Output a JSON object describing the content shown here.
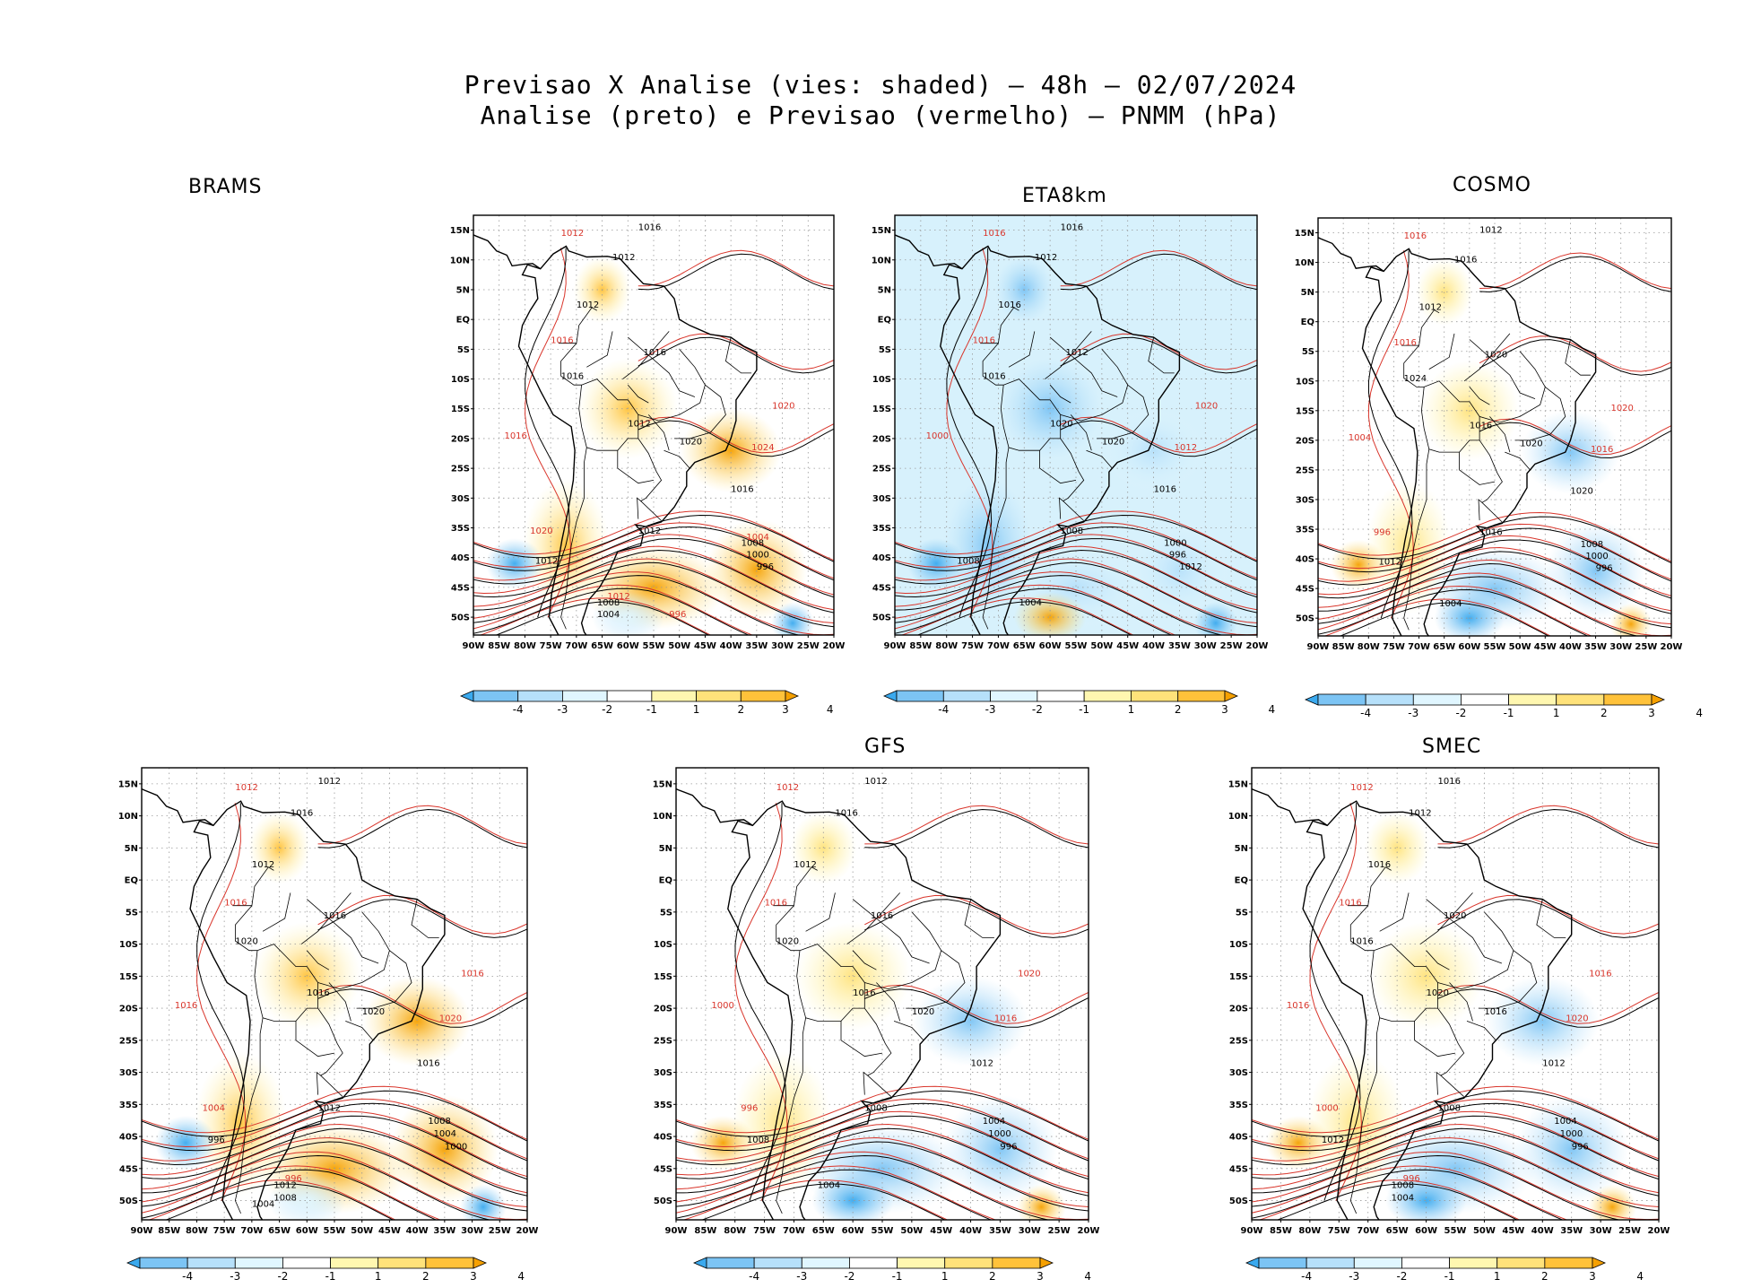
{
  "header": {
    "title_line1": "Previsao X Analise (vies: shaded) — 48h — 02/07/2024",
    "title_line2": "Analise (preto) e Previsao (vermelho) — PNMM (hPa)"
  },
  "axes": {
    "lon_labels": [
      "90W",
      "85W",
      "80W",
      "75W",
      "70W",
      "65W",
      "60W",
      "55W",
      "50W",
      "45W",
      "40W",
      "35W",
      "30W",
      "25W",
      "20W"
    ],
    "lat_labels": [
      "15N",
      "10N",
      "5N",
      "EQ",
      "5S",
      "10S",
      "15S",
      "20S",
      "25S",
      "30S",
      "35S",
      "40S",
      "45S",
      "50S"
    ]
  },
  "colorbar": {
    "labels": [
      "-4",
      "-3",
      "-2",
      "-1",
      "1",
      "2",
      "3",
      "4"
    ],
    "colors": [
      "#3aa9ee",
      "#7cc4f4",
      "#b6e0fa",
      "#e0f6ff",
      "#ffffff",
      "#fff7b0",
      "#ffe27a",
      "#ffc23a",
      "#f5a000"
    ]
  },
  "colors": {
    "analysis_contour": "#000000",
    "forecast_contour": "#d9352b",
    "grid": "#999999"
  },
  "panels": [
    {
      "id": "brams",
      "name": "BRAMS",
      "bias_tone": "warm",
      "isobar_labels_black": [
        "1016",
        "1012",
        "1012",
        "1016",
        "1016",
        "1012",
        "1020",
        "1016",
        "1012",
        "1008",
        "1000",
        "996",
        "1012",
        "1008",
        "1004"
      ],
      "isobar_labels_red": [
        "1012",
        "1016",
        "1020",
        "1024",
        "1016",
        "1020",
        "1012",
        "1004",
        "996"
      ]
    },
    {
      "id": "eta8km",
      "name": "ETA8km",
      "bias_tone": "cool",
      "isobar_labels_black": [
        "1016",
        "1012",
        "1016",
        "1012",
        "1016",
        "1020",
        "1020",
        "1016",
        "1008",
        "1000",
        "996",
        "1012",
        "1008",
        "1004"
      ],
      "isobar_labels_red": [
        "1016",
        "1016",
        "1020",
        "1012",
        "1000"
      ]
    },
    {
      "id": "cosmo",
      "name": "COSMO",
      "bias_tone": "mixed",
      "isobar_labels_black": [
        "1012",
        "1016",
        "1012",
        "1020",
        "1024",
        "1016",
        "1020",
        "1020",
        "1016",
        "1008",
        "1000",
        "996",
        "1012",
        "1004"
      ],
      "isobar_labels_red": [
        "1016",
        "1016",
        "1020",
        "1016",
        "1004",
        "996"
      ]
    },
    {
      "id": "brams2",
      "name": "",
      "bias_tone": "warm",
      "isobar_labels_black": [
        "1012",
        "1016",
        "1012",
        "1016",
        "1020",
        "1016",
        "1020",
        "1016",
        "1012",
        "1008",
        "1004",
        "1000",
        "996",
        "1012",
        "1008",
        "1004"
      ],
      "isobar_labels_red": [
        "1012",
        "1016",
        "1016",
        "1020",
        "1016",
        "1004",
        "996"
      ]
    },
    {
      "id": "gfs",
      "name": "GFS",
      "bias_tone": "mixed",
      "isobar_labels_black": [
        "1012",
        "1016",
        "1012",
        "1016",
        "1020",
        "1016",
        "1020",
        "1012",
        "1008",
        "1004",
        "1000",
        "996",
        "1008",
        "1004"
      ],
      "isobar_labels_red": [
        "1012",
        "1016",
        "1020",
        "1016",
        "1000",
        "996"
      ]
    },
    {
      "id": "smec",
      "name": "SMEC",
      "bias_tone": "mixed",
      "isobar_labels_black": [
        "1016",
        "1012",
        "1016",
        "1020",
        "1016",
        "1020",
        "1016",
        "1012",
        "1008",
        "1004",
        "1000",
        "996",
        "1012",
        "1008",
        "1004"
      ],
      "isobar_labels_red": [
        "1012",
        "1016",
        "1016",
        "1020",
        "1016",
        "1000",
        "996"
      ]
    }
  ]
}
